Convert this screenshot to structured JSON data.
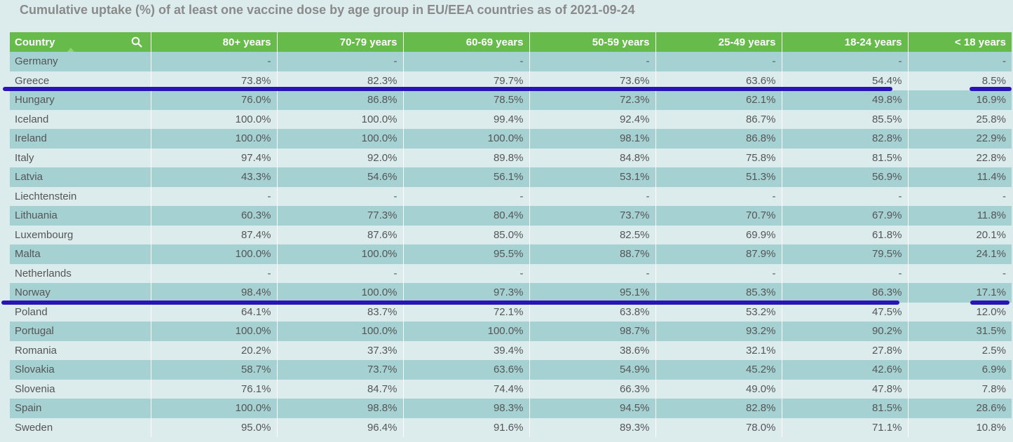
{
  "title": "Cumulative uptake (%) of at least one vaccine dose by age group in EU/EEA countries as of 2021-09-24",
  "table": {
    "headers": [
      "Country",
      "80+ years",
      "70-79 years",
      "60-69 years",
      "50-59 years",
      "25-49 years",
      "18-24 years",
      "< 18 years"
    ],
    "rows": [
      [
        "Germany",
        "-",
        "-",
        "-",
        "-",
        "-",
        "-",
        "-"
      ],
      [
        "Greece",
        "73.8%",
        "82.3%",
        "79.7%",
        "73.6%",
        "63.6%",
        "54.4%",
        "8.5%"
      ],
      [
        "Hungary",
        "76.0%",
        "86.8%",
        "78.5%",
        "72.3%",
        "62.1%",
        "49.8%",
        "16.9%"
      ],
      [
        "Iceland",
        "100.0%",
        "100.0%",
        "99.4%",
        "92.4%",
        "86.7%",
        "85.5%",
        "25.8%"
      ],
      [
        "Ireland",
        "100.0%",
        "100.0%",
        "100.0%",
        "98.1%",
        "86.8%",
        "82.8%",
        "22.9%"
      ],
      [
        "Italy",
        "97.4%",
        "92.0%",
        "89.8%",
        "84.8%",
        "75.8%",
        "81.5%",
        "22.8%"
      ],
      [
        "Latvia",
        "43.3%",
        "54.6%",
        "56.1%",
        "53.1%",
        "51.3%",
        "56.9%",
        "11.4%"
      ],
      [
        "Liechtenstein",
        "-",
        "-",
        "-",
        "-",
        "-",
        "-",
        "-"
      ],
      [
        "Lithuania",
        "60.3%",
        "77.3%",
        "80.4%",
        "73.7%",
        "70.7%",
        "67.9%",
        "11.8%"
      ],
      [
        "Luxembourg",
        "87.4%",
        "87.6%",
        "85.0%",
        "82.5%",
        "69.9%",
        "61.8%",
        "20.1%"
      ],
      [
        "Malta",
        "100.0%",
        "100.0%",
        "95.5%",
        "88.7%",
        "87.9%",
        "79.5%",
        "24.1%"
      ],
      [
        "Netherlands",
        "-",
        "-",
        "-",
        "-",
        "-",
        "-",
        "-"
      ],
      [
        "Norway",
        "98.4%",
        "100.0%",
        "97.3%",
        "95.1%",
        "85.3%",
        "86.3%",
        "17.1%"
      ],
      [
        "Poland",
        "64.1%",
        "83.7%",
        "72.1%",
        "63.8%",
        "53.2%",
        "47.5%",
        "12.0%"
      ],
      [
        "Portugal",
        "100.0%",
        "100.0%",
        "100.0%",
        "98.7%",
        "93.2%",
        "90.2%",
        "31.5%"
      ],
      [
        "Romania",
        "20.2%",
        "37.3%",
        "39.4%",
        "38.6%",
        "32.1%",
        "27.8%",
        "2.5%"
      ],
      [
        "Slovakia",
        "58.7%",
        "73.7%",
        "63.6%",
        "54.9%",
        "45.2%",
        "42.6%",
        "6.9%"
      ],
      [
        "Slovenia",
        "76.1%",
        "84.7%",
        "74.4%",
        "66.3%",
        "49.0%",
        "47.8%",
        "7.8%"
      ],
      [
        "Spain",
        "100.0%",
        "98.8%",
        "98.3%",
        "94.5%",
        "82.8%",
        "81.5%",
        "28.6%"
      ],
      [
        "Sweden",
        "95.0%",
        "96.4%",
        "91.6%",
        "89.3%",
        "78.0%",
        "71.1%",
        "10.8%"
      ]
    ]
  },
  "icons": {
    "search": "search-icon",
    "sort": "sort-asc-icon"
  },
  "colors": {
    "header_bg": "#66bb4a",
    "row_dark": "#a6d1d3",
    "row_light": "#dcecec",
    "annotation": "#2a14b8"
  }
}
